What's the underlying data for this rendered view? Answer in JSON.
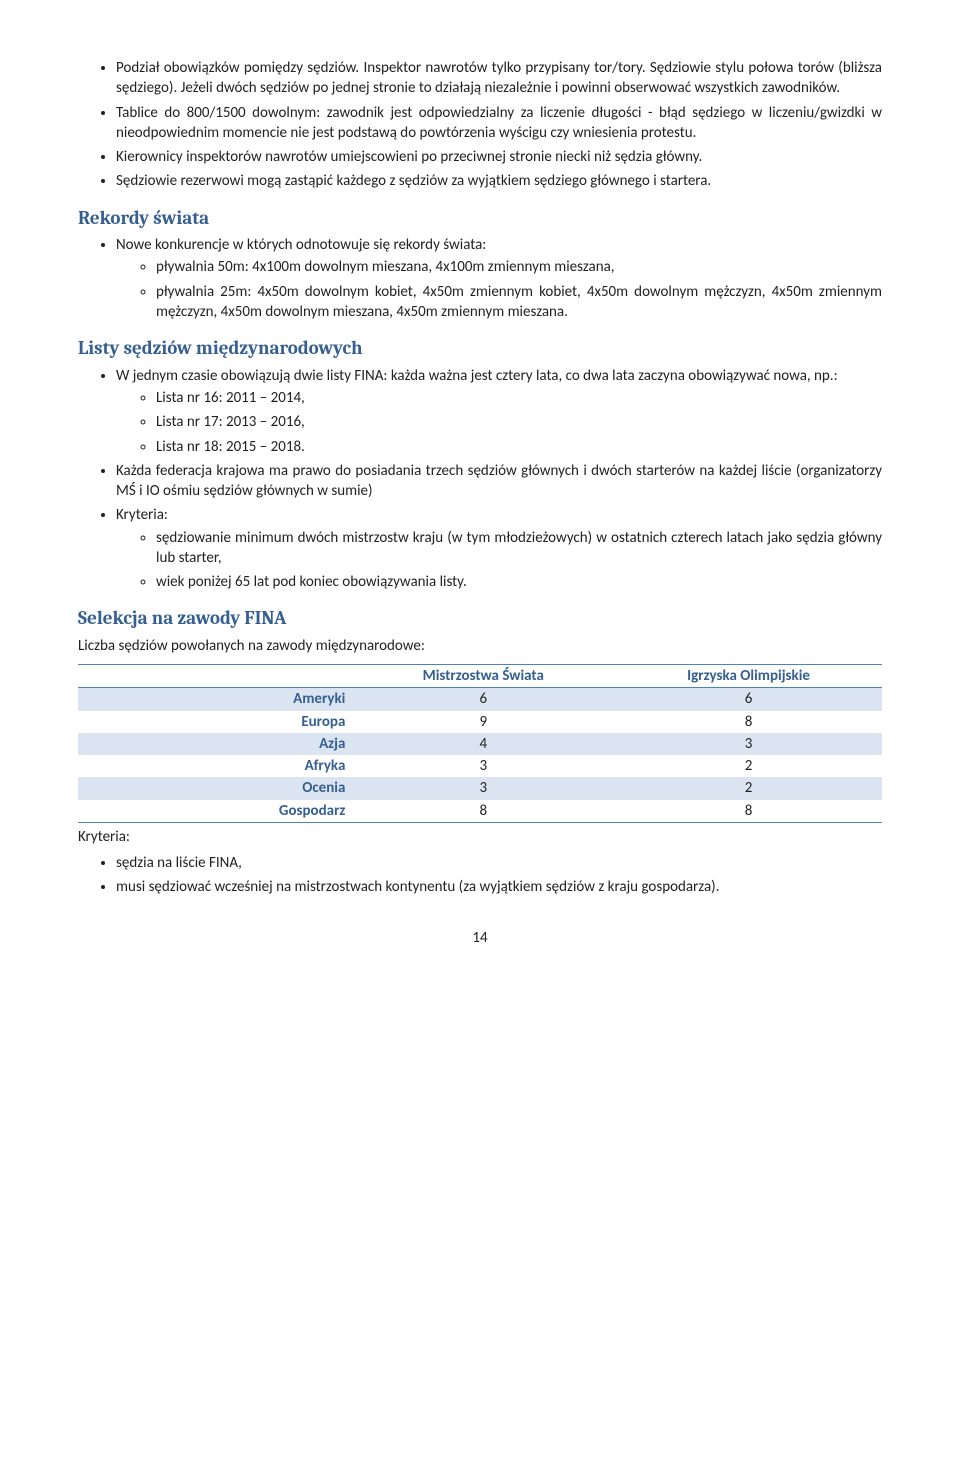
{
  "topBullets": [
    "Podział obowiązków pomiędzy sędziów. Inspektor nawrotów tylko przypisany tor/tory. Sędziowie stylu połowa torów (bliższa sędziego). Jeżeli dwóch sędziów po jednej stronie to działają niezależnie i powinni obserwować wszystkich zawodników.",
    "Tablice do 800/1500 dowolnym: zawodnik jest odpowiedzialny za liczenie długości - błąd sędziego w liczeniu/gwizdki w nieodpowiednim momencie nie jest podstawą do powtórzenia wyścigu czy wniesienia protestu.",
    "Kierownicy inspektorów nawrotów umiejscowieni po przeciwnej stronie niecki niż sędzia główny.",
    "Sędziowie rezerwowi mogą zastąpić każdego z sędziów za wyjątkiem sędziego głównego i startera."
  ],
  "sec1": {
    "title": "Rekordy świata",
    "lead": "Nowe konkurencje w których odnotowuje się rekordy świata:",
    "sub": [
      "pływalnia 50m: 4x100m dowolnym mieszana, 4x100m zmiennym mieszana,",
      "pływalnia 25m: 4x50m dowolnym kobiet, 4x50m zmiennym kobiet, 4x50m dowolnym mężczyzn, 4x50m zmiennym mężczyzn, 4x50m dowolnym mieszana, 4x50m zmiennym mieszana."
    ]
  },
  "sec2": {
    "title": "Listy sędziów międzynarodowych",
    "b1": "W jednym czasie obowiązują dwie listy FINA: każda ważna jest cztery lata, co dwa lata zaczyna obowiązywać nowa, np.:",
    "b1sub": [
      "Lista nr 16: 2011 – 2014,",
      "Lista nr 17: 2013 – 2016,",
      "Lista nr 18: 2015 – 2018."
    ],
    "b2": "Każda federacja krajowa ma prawo do posiadania trzech sędziów głównych i dwóch starterów na każdej liście (organizatorzy MŚ i IO ośmiu sędziów głównych w sumie)",
    "b3": "Kryteria:",
    "b3sub": [
      "sędziowanie minimum dwóch mistrzostw kraju (w tym młodzieżowych) w ostatnich czterech latach jako sędzia główny lub starter,",
      "wiek poniżej 65 lat pod koniec obowiązywania listy."
    ]
  },
  "sec3": {
    "title": "Selekcja na zawody FINA",
    "lead": "Liczba sędziów powołanych na zawody międzynarodowe:",
    "table": {
      "headers": [
        "",
        "Mistrzostwa Świata",
        "Igrzyska Olimpijskie"
      ],
      "rows": [
        {
          "region": "Ameryki",
          "ms": "6",
          "io": "6",
          "band": true
        },
        {
          "region": "Europa",
          "ms": "9",
          "io": "8",
          "band": false
        },
        {
          "region": "Azja",
          "ms": "4",
          "io": "3",
          "band": true
        },
        {
          "region": "Afryka",
          "ms": "3",
          "io": "2",
          "band": false
        },
        {
          "region": "Ocenia",
          "ms": "3",
          "io": "2",
          "band": true
        },
        {
          "region": "Gospodarz",
          "ms": "8",
          "io": "8",
          "band": false
        }
      ]
    },
    "afterTable": "Kryteria:",
    "afterBullets": [
      "sędzia na liście FINA,",
      "musi sędziować wcześniej na mistrzostwach kontynentu (za wyjątkiem sędziów z kraju gospodarza)."
    ]
  },
  "pageNumber": "14"
}
